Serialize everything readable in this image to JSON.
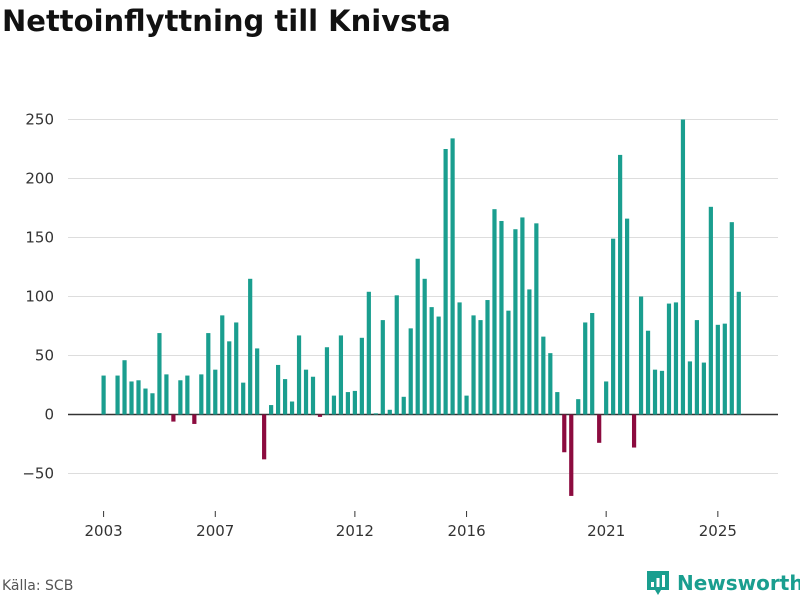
{
  "colors": {
    "positive": "#1a9e8f",
    "negative": "#8c0b3f",
    "grid": "#dddddd",
    "axis": "#333333",
    "brand": "#1a9e8f"
  },
  "source": "Källa: SCB",
  "brand": {
    "name": "Newsworthy",
    "icon": "newsworthy-logo-icon"
  },
  "chart_data": {
    "type": "bar",
    "title": "Nettoinflyttning till Knivsta",
    "xlabel": "",
    "ylabel": "",
    "ylim": [
      -73,
      250
    ],
    "yticks": [
      -50,
      0,
      50,
      100,
      150,
      200,
      250
    ],
    "yticklabels": [
      "−50",
      "0",
      "50",
      "100",
      "150",
      "200",
      "250"
    ],
    "xticks": [
      {
        "label": "2003",
        "index": 0
      },
      {
        "label": "2007",
        "index": 16
      },
      {
        "label": "2012",
        "index": 36
      },
      {
        "label": "2016",
        "index": 52
      },
      {
        "label": "2021",
        "index": 72
      },
      {
        "label": "2025",
        "index": 88
      }
    ],
    "series": [
      {
        "name": "Nettoinflyttning",
        "values": [
          33,
          0,
          33,
          46,
          28,
          29,
          22,
          18,
          69,
          34,
          -6,
          29,
          33,
          -8,
          34,
          69,
          38,
          84,
          62,
          78,
          27,
          115,
          56,
          -38,
          8,
          42,
          30,
          11,
          67,
          38,
          32,
          -2,
          57,
          16,
          67,
          19,
          20,
          65,
          104,
          1,
          80,
          4,
          101,
          15,
          73,
          132,
          115,
          91,
          83,
          225,
          234,
          95,
          16,
          84,
          80,
          97,
          174,
          164,
          88,
          157,
          167,
          106,
          162,
          66,
          52,
          19,
          -32,
          -69,
          13,
          78,
          86,
          -24,
          28,
          149,
          220,
          166,
          -28,
          100,
          71,
          38,
          37,
          94,
          95,
          250,
          45,
          80,
          44,
          176,
          76,
          77,
          163,
          104
        ]
      }
    ]
  }
}
